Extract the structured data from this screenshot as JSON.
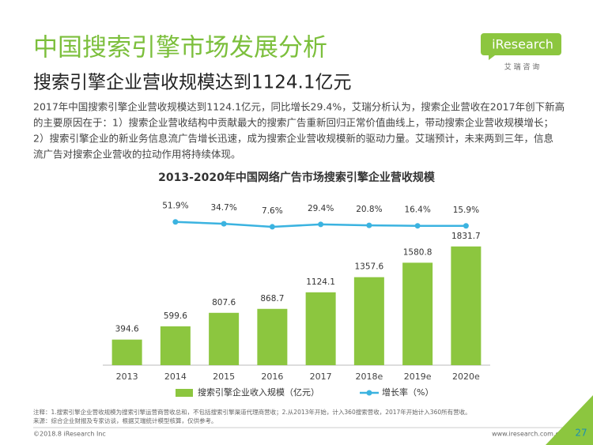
{
  "header": {
    "title": "中国搜索引擎市场发展分析",
    "subtitle": "搜索引擎企业营收规模达到1124.1亿元"
  },
  "logo": {
    "brand": "iResearch",
    "cn": "艾 瑞 咨 询"
  },
  "body": {
    "lines": [
      "2017年中国搜索引擎企业营收规模达到1124.1亿元，同比增长29.4%，艾瑞分析认为，搜索企业营收在2017年创下新高",
      "的主要原因在于：1）搜索企业营收结构中贡献最大的搜索广告重新回归正常价值曲线上，带动搜索企业营收规模增长；",
      "2）搜索引擎企业的新业务信息流广告增长迅速，成为搜索企业营收规模新的驱动力量。艾瑞预计，未来两到三年，信息",
      "流广告对搜索企业营收的拉动作用将持续体现。"
    ]
  },
  "chart_data": {
    "type": "bar-line",
    "title": "2013-2020年中国网络广告市场搜索引擎企业营收规模",
    "categories": [
      "2013",
      "2014",
      "2015",
      "2016",
      "2017",
      "2018e",
      "2019e",
      "2020e"
    ],
    "series": [
      {
        "name": "搜索引擎企业收入规模（亿元）",
        "type": "bar",
        "color": "#8cc63f",
        "values": [
          394.6,
          599.6,
          807.6,
          868.7,
          1124.1,
          1357.6,
          1580.8,
          1831.7
        ]
      },
      {
        "name": "增长率（%）",
        "type": "line",
        "axis": "y2",
        "color": "#3bb3e0",
        "values": [
          null,
          51.9,
          34.7,
          7.6,
          29.4,
          20.8,
          16.4,
          15.9
        ],
        "value_labels": [
          null,
          "51.9%",
          "34.7%",
          "7.6%",
          "29.4%",
          "20.8%",
          "16.4%",
          "15.9%"
        ]
      }
    ],
    "ylim": [
      0,
      2000
    ],
    "y2lim": [
      -300,
      100
    ]
  },
  "notes": [
    "注释：1.搜索引擎企业营收规模为搜索引擎运营商营收总和，不包括搜索引擎渠道代理商营收；2.从2013年开始，计入360搜索营收，2017年开始计入360所有营收。",
    "来源：综合企业财报及专家访谈，根据艾瑞统计模型核算，仅供参考。"
  ],
  "footer": {
    "copyright": "©2018.8 iResearch Inc",
    "site": "www.iresearch.com.cn",
    "page": "27"
  }
}
